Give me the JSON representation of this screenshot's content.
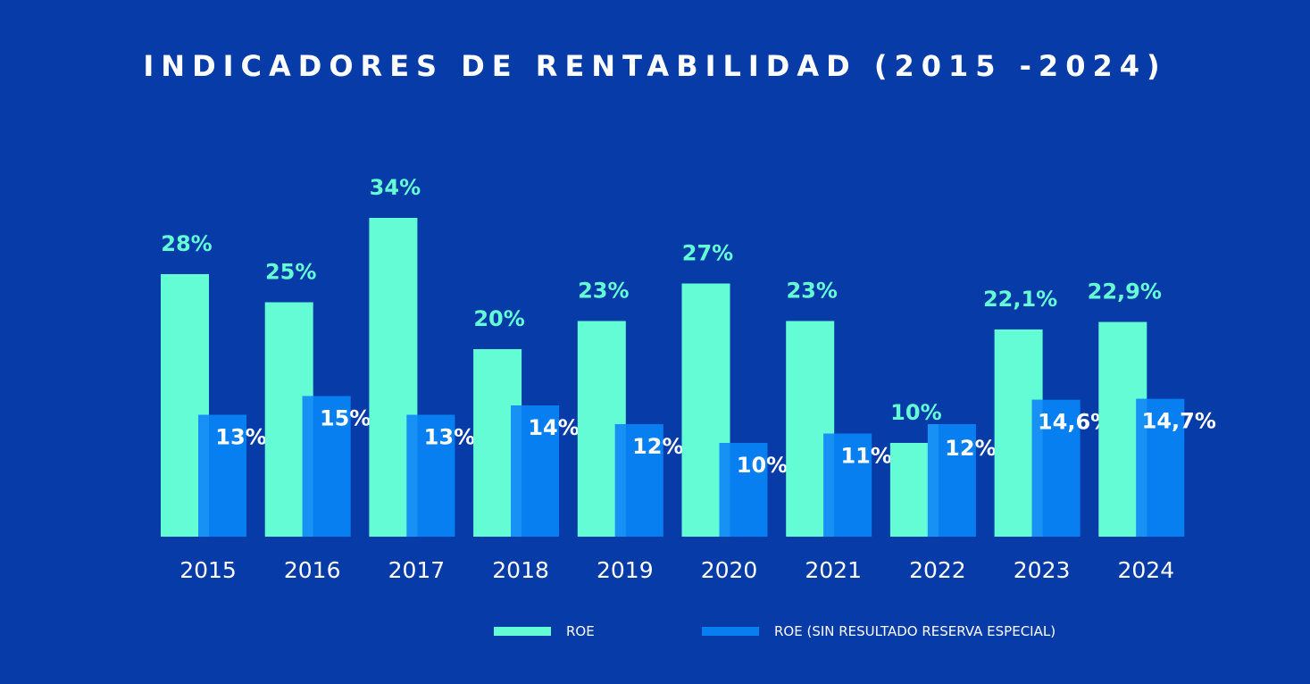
{
  "chart_data": {
    "type": "bar",
    "title": "INDICADORES DE RENTABILIDAD (2015 -2024)",
    "categories": [
      "2015",
      "2016",
      "2017",
      "2018",
      "2019",
      "2020",
      "2021",
      "2022",
      "2023",
      "2024"
    ],
    "series": [
      {
        "name": "ROE",
        "color": "#64FCD4",
        "values": [
          28,
          25,
          34,
          20,
          23,
          27,
          23,
          10,
          22.1,
          22.9
        ],
        "labels": [
          "28%",
          "25%",
          "34%",
          "20%",
          "23%",
          "27%",
          "23%",
          "10%",
          "22,1%",
          "22,9%"
        ]
      },
      {
        "name": "ROE (SIN RESULTADO RESERVA ESPECIAL)",
        "color": "#077FF0",
        "values": [
          13,
          15,
          13,
          14,
          12,
          10,
          11,
          12,
          14.6,
          14.7
        ],
        "labels": [
          "13%",
          "15%",
          "13%",
          "14%",
          "12%",
          "10%",
          "11%",
          "12%",
          "14,6%",
          "14,7%"
        ]
      }
    ],
    "xlabel": "",
    "ylabel": "",
    "ylim": [
      0,
      34
    ],
    "grid": false,
    "legend_position": "bottom-center"
  }
}
